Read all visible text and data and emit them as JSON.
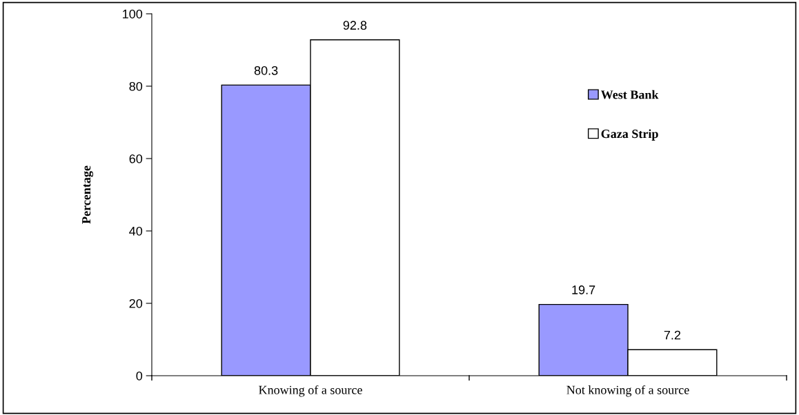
{
  "chart_data": {
    "type": "bar",
    "ylabel": "Percentage",
    "categories": [
      "Knowing of a source",
      "Not knowing of a source"
    ],
    "series": [
      {
        "name": "West Bank",
        "color": "#9999ff",
        "values": [
          80.3,
          19.7
        ]
      },
      {
        "name": "Gaza Strip",
        "color": "#ffffff",
        "values": [
          92.8,
          7.2
        ]
      }
    ],
    "ylim": [
      0,
      100
    ],
    "yticks": [
      0,
      20,
      40,
      60,
      80,
      100
    ],
    "data_labels": true,
    "legend": "right",
    "grid": false
  }
}
